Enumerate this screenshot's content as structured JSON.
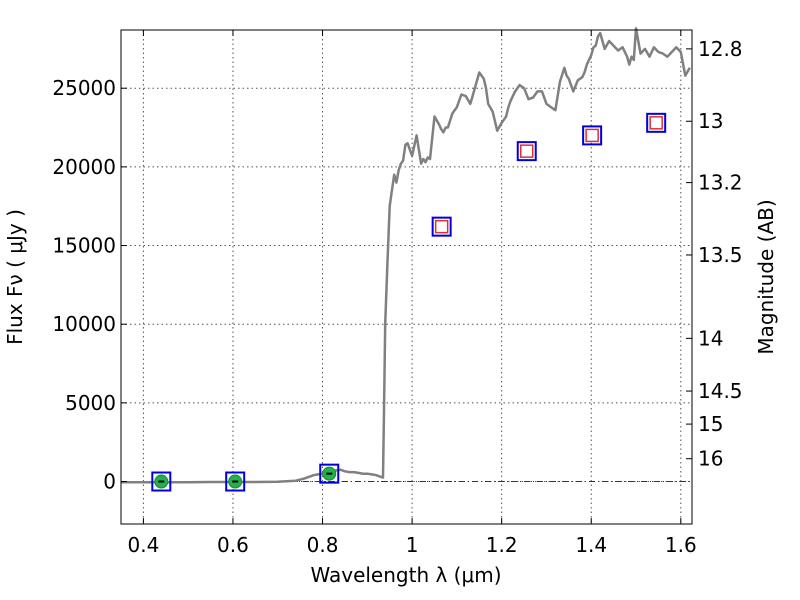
{
  "chart_data": {
    "type": "line",
    "xlabel": "Wavelength  λ (μm)",
    "ylabel": "Flux  Fν  ( μJy )",
    "ylabel_right": "Magnitude (AB)",
    "xlim": [
      0.35,
      1.625
    ],
    "ylim": [
      -2700,
      28700
    ],
    "grid": true,
    "x_ticks": [
      0.4,
      0.6,
      0.8,
      1.0,
      1.2,
      1.4,
      1.6
    ],
    "x_tick_labels": [
      "0.4",
      "0.6",
      "0.8",
      "1",
      "1.2",
      "1.4",
      "1.6"
    ],
    "y_ticks": [
      0,
      5000,
      10000,
      15000,
      20000,
      25000
    ],
    "y_tick_labels": [
      "0",
      "5000",
      "10000",
      "15000",
      "20000",
      "25000"
    ],
    "magnitude_ticks": [
      {
        "label": "12.8",
        "flux": 27500
      },
      {
        "label": "13",
        "flux": 22900
      },
      {
        "label": "13.2",
        "flux": 19000
      },
      {
        "label": "13.5",
        "flux": 14400
      },
      {
        "label": "14",
        "flux": 9100
      },
      {
        "label": "14.5",
        "flux": 5750
      },
      {
        "label": "15",
        "flux": 3650
      },
      {
        "label": "16",
        "flux": 1450
      }
    ],
    "series": [
      {
        "kind": "line",
        "color": "#808080",
        "x": [
          0.35,
          0.4,
          0.45,
          0.5,
          0.55,
          0.6,
          0.65,
          0.7,
          0.74,
          0.76,
          0.78,
          0.79,
          0.8,
          0.81,
          0.82,
          0.83,
          0.84,
          0.85,
          0.86,
          0.87,
          0.88,
          0.89,
          0.9,
          0.91,
          0.92,
          0.93,
          0.935,
          0.937,
          0.94,
          0.945,
          0.95,
          0.955,
          0.96,
          0.965,
          0.97,
          0.975,
          0.98,
          0.985,
          0.99,
          1.0,
          1.01,
          1.02,
          1.025,
          1.03,
          1.035,
          1.04,
          1.05,
          1.06,
          1.065,
          1.07,
          1.075,
          1.08,
          1.09,
          1.1,
          1.11,
          1.12,
          1.13,
          1.135,
          1.14,
          1.15,
          1.16,
          1.165,
          1.17,
          1.18,
          1.19,
          1.2,
          1.205,
          1.21,
          1.215,
          1.22,
          1.23,
          1.24,
          1.25,
          1.26,
          1.27,
          1.28,
          1.29,
          1.3,
          1.31,
          1.32,
          1.33,
          1.34,
          1.345,
          1.35,
          1.36,
          1.37,
          1.38,
          1.385,
          1.39,
          1.4,
          1.405,
          1.41,
          1.415,
          1.42,
          1.43,
          1.44,
          1.45,
          1.46,
          1.47,
          1.48,
          1.485,
          1.49,
          1.495,
          1.5,
          1.51,
          1.52,
          1.53,
          1.54,
          1.55,
          1.56,
          1.57,
          1.58,
          1.59,
          1.6,
          1.61,
          1.62
        ],
        "y": [
          -50,
          -40,
          -40,
          -40,
          -30,
          -30,
          -30,
          -20,
          50,
          200,
          400,
          450,
          500,
          600,
          650,
          700,
          750,
          650,
          600,
          600,
          550,
          500,
          500,
          450,
          400,
          300,
          250,
          4000,
          10000,
          14000,
          17500,
          18500,
          19500,
          19000,
          19800,
          20200,
          20400,
          21400,
          21500,
          20700,
          22000,
          20200,
          20500,
          20300,
          20600,
          20500,
          23200,
          22700,
          22400,
          22200,
          22500,
          22500,
          23400,
          23800,
          24600,
          24500,
          24000,
          24500,
          25000,
          26000,
          25600,
          25000,
          24000,
          23500,
          22300,
          22800,
          23000,
          23200,
          23800,
          24200,
          24800,
          25200,
          25000,
          24300,
          24400,
          24800,
          24800,
          24000,
          23800,
          23600,
          25400,
          26300,
          25800,
          25600,
          24800,
          25500,
          25700,
          26000,
          26500,
          27100,
          27600,
          27700,
          28300,
          28500,
          27500,
          28000,
          27700,
          27400,
          27600,
          27000,
          26500,
          27000,
          26800,
          28800,
          27200,
          27500,
          27000,
          27600,
          27300,
          27200,
          27000,
          27300,
          27600,
          27300,
          25800,
          26300
        ],
        "break_after_index": 26
      },
      {
        "kind": "points",
        "name": "",
        "marker": "circle",
        "color": "#22b14c",
        "x": [
          0.44,
          0.605,
          0.815
        ],
        "y": [
          0,
          0,
          500
        ],
        "box_color": "#0000dd"
      },
      {
        "kind": "points",
        "name": "",
        "marker": "square",
        "color": "#e03030",
        "x": [
          1.066,
          1.256,
          1.402,
          1.545
        ],
        "y": [
          16200,
          21000,
          22000,
          22800
        ],
        "box_color": "#0000dd"
      }
    ],
    "zero_line": true
  }
}
